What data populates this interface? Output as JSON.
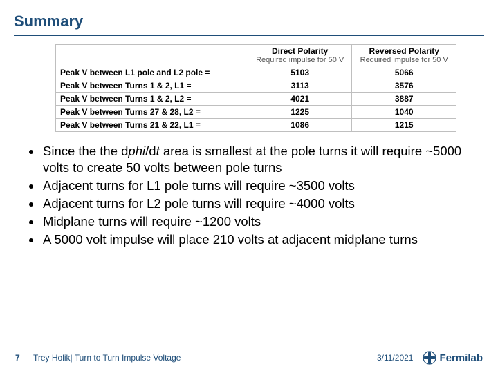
{
  "title": "Summary",
  "table": {
    "header_main_1": "Direct Polarity",
    "header_main_2": "Reversed Polarity",
    "header_sub": "Required impulse for 50 V",
    "rows": [
      {
        "label": "Peak V between L1 pole and L2 pole =",
        "direct": "5103",
        "reversed": "5066"
      },
      {
        "label": "Peak V between Turns 1 & 2,  L1 =",
        "direct": "3113",
        "reversed": "3576"
      },
      {
        "label": "Peak V between Turns 1 & 2,  L2 =",
        "direct": "4021",
        "reversed": "3887"
      },
      {
        "label": "Peak V between Turns 27 & 28, L2 =",
        "direct": "1225",
        "reversed": "1040"
      },
      {
        "label": "Peak V between Turns 21 & 22, L1 =",
        "direct": "1086",
        "reversed": "1215"
      }
    ],
    "border_color": "#bfbfbf",
    "header_fontsize": 12,
    "cell_fontsize": 12
  },
  "bullets": [
    {
      "pre": "Since the the d",
      "mid": "phi",
      "post": "/d",
      "mid2": "t",
      "post2": " area is smallest at the pole turns it will require ~5000 volts to create 50 volts between pole turns"
    },
    {
      "text": "Adjacent turns for L1 pole turns will require ~3500 volts"
    },
    {
      "text": "Adjacent turns for L2 pole turns will require ~4000 volts"
    },
    {
      "text": "Midplane turns will require ~1200 volts"
    },
    {
      "text": "A 5000 volt impulse will place 210 volts at adjacent midplane turns"
    }
  ],
  "footer": {
    "page": "7",
    "title": "Trey Holik| Turn to Turn Impulse Voltage",
    "date": "3/11/2021",
    "logo_text": "Fermilab",
    "logo_color": "#1f4e79"
  },
  "colors": {
    "accent": "#1f4e79",
    "bg": "#ffffff"
  }
}
